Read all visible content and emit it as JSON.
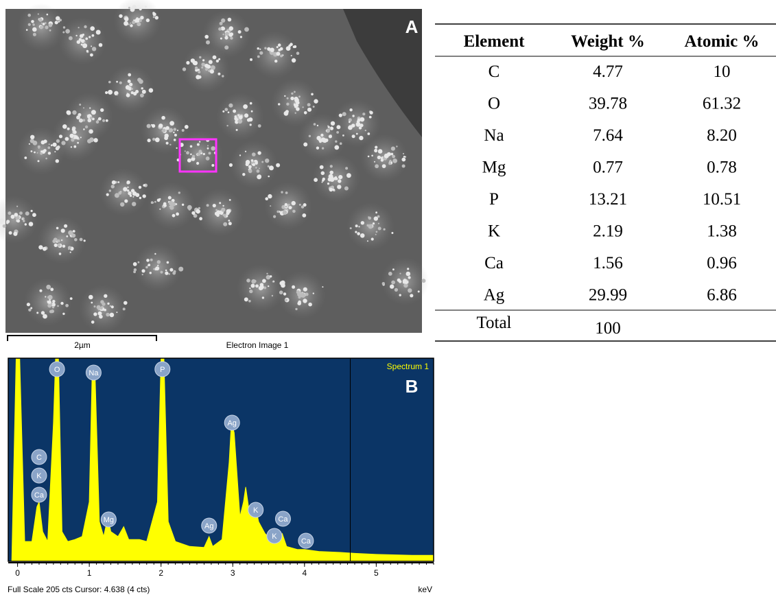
{
  "panel_a": {
    "label": "A",
    "scale_bar": "2µm",
    "caption": "Electron Image 1"
  },
  "table": {
    "header": [
      "Element",
      "Weight %",
      "Atomic %"
    ],
    "rows": [
      [
        "C",
        "4.77",
        "10"
      ],
      [
        "O",
        "39.78",
        "61.32"
      ],
      [
        "Na",
        "7.64",
        "8.20"
      ],
      [
        "Mg",
        "0.77",
        "0.78"
      ],
      [
        "P",
        "13.21",
        "10.51"
      ],
      [
        "K",
        "2.19",
        "1.38"
      ],
      [
        "Ca",
        "1.56",
        "0.96"
      ],
      [
        "Ag",
        "29.99",
        "6.86"
      ]
    ],
    "total": [
      "Total",
      "100"
    ]
  },
  "chart_data": {
    "type": "area",
    "panel_label": "B",
    "legend": "Spectrum 1",
    "xlabel": "keV",
    "status": "Full Scale 205 cts Cursor: 4.638  (4 cts)",
    "color": "#ffff00",
    "background": "#0b3566",
    "xlim": [
      -0.13,
      5.8
    ],
    "ylim": [
      0,
      205
    ],
    "xticks": [
      0,
      1,
      2,
      3,
      4,
      5
    ],
    "cursor": 4.638,
    "x": [
      -0.08,
      -0.02,
      0.03,
      0.1,
      0.2,
      0.27,
      0.3,
      0.35,
      0.42,
      0.5,
      0.53,
      0.57,
      0.62,
      0.7,
      0.8,
      0.9,
      1.0,
      1.04,
      1.08,
      1.14,
      1.2,
      1.26,
      1.3,
      1.4,
      1.48,
      1.55,
      1.7,
      1.8,
      1.95,
      2.0,
      2.04,
      2.1,
      2.2,
      2.4,
      2.6,
      2.67,
      2.72,
      2.85,
      2.95,
      2.98,
      3.02,
      3.1,
      3.15,
      3.18,
      3.23,
      3.32,
      3.36,
      3.45,
      3.6,
      3.69,
      3.75,
      3.9,
      4.0,
      4.2,
      4.5,
      4.7,
      5.0,
      5.5,
      5.8
    ],
    "values": [
      0,
      205,
      205,
      20,
      20,
      55,
      60,
      30,
      20,
      140,
      205,
      205,
      30,
      20,
      22,
      25,
      60,
      190,
      190,
      40,
      25,
      45,
      30,
      25,
      35,
      22,
      22,
      20,
      60,
      205,
      205,
      40,
      20,
      15,
      14,
      25,
      15,
      22,
      100,
      140,
      130,
      45,
      60,
      75,
      50,
      55,
      40,
      28,
      18,
      28,
      15,
      12,
      12,
      10,
      9,
      8,
      7,
      6,
      6
    ],
    "peaks": [
      {
        "label": "O",
        "x": 0.55
      },
      {
        "label": "Na",
        "x": 1.06
      },
      {
        "label": "P",
        "x": 2.02
      },
      {
        "label": "Ag",
        "x": 2.99
      },
      {
        "label": "C",
        "x": 0.3
      },
      {
        "label": "K",
        "x": 0.3
      },
      {
        "label": "Ca",
        "x": 0.3
      },
      {
        "label": "Mg",
        "x": 1.27
      },
      {
        "label": "Ag",
        "x": 2.67
      },
      {
        "label": "K",
        "x": 3.32
      },
      {
        "label": "Ca",
        "x": 3.7
      },
      {
        "label": "K",
        "x": 3.58
      },
      {
        "label": "Ca",
        "x": 4.02
      }
    ]
  }
}
